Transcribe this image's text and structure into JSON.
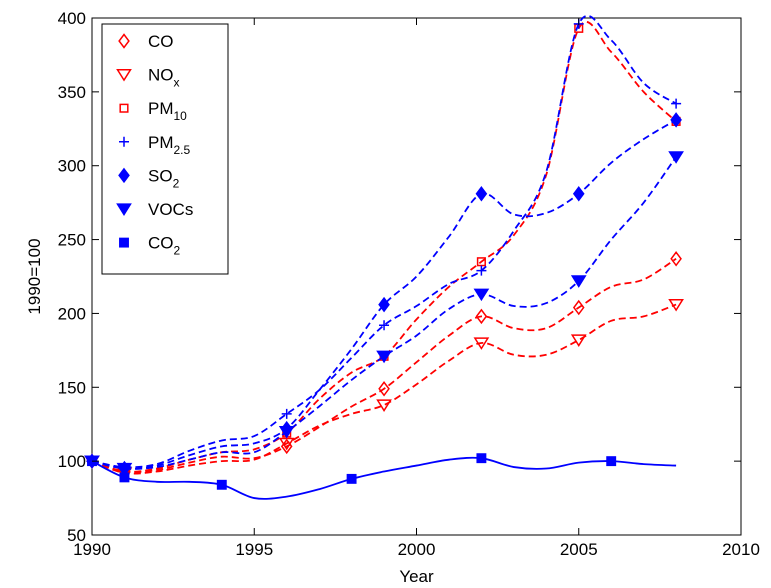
{
  "chart_data": {
    "type": "line",
    "title": "",
    "xlabel": "Year",
    "ylabel": "1990=100",
    "xlim": [
      1990,
      2010
    ],
    "ylim": [
      50,
      400
    ],
    "xticks": [
      1990,
      1995,
      2000,
      2005,
      2010
    ],
    "yticks": [
      50,
      100,
      150,
      200,
      250,
      300,
      350,
      400
    ],
    "grid": false,
    "legend_position": "top-left",
    "series": [
      {
        "name": "CO",
        "color": "#ff0000",
        "line_style": "dashed",
        "marker": "diamond-open",
        "x": [
          1990,
          1991,
          1992,
          1993,
          1994,
          1995,
          1996,
          1997,
          1998,
          1999,
          2000,
          2001,
          2002,
          2003,
          2004,
          2005,
          2006,
          2007,
          2008
        ],
        "y": [
          100,
          93,
          94,
          99,
          103,
          102,
          110,
          123,
          137,
          149,
          167,
          185,
          198,
          190,
          190,
          204,
          218,
          223,
          237
        ],
        "marker_x": [
          1990,
          1991,
          1996,
          1999,
          2002,
          2005,
          2008
        ],
        "marker_y": [
          100,
          93,
          110,
          149,
          198,
          204,
          237
        ]
      },
      {
        "name": "NOx",
        "color": "#ff0000",
        "line_style": "dashed",
        "marker": "triangle-down-open",
        "x": [
          1990,
          1991,
          1992,
          1993,
          1994,
          1995,
          1996,
          1997,
          1998,
          1999,
          2000,
          2001,
          2002,
          2003,
          2004,
          2005,
          2006,
          2007,
          2008
        ],
        "y": [
          100,
          92,
          93,
          97,
          100,
          101,
          112,
          124,
          132,
          138,
          152,
          168,
          180,
          172,
          172,
          182,
          195,
          198,
          206
        ],
        "marker_x": [
          1990,
          1991,
          1996,
          1999,
          2002,
          2005,
          2008
        ],
        "marker_y": [
          100,
          92,
          112,
          138,
          180,
          182,
          206
        ]
      },
      {
        "name": "PM10",
        "color": "#ff0000",
        "line_style": "dashed",
        "marker": "square-open",
        "x": [
          1990,
          1991,
          1992,
          1993,
          1994,
          1995,
          1996,
          1997,
          1998,
          1999,
          2000,
          2001,
          2002,
          2003,
          2004,
          2005,
          2006,
          2007,
          2008
        ],
        "y": [
          100,
          93,
          95,
          101,
          106,
          108,
          119,
          142,
          160,
          171,
          196,
          218,
          235,
          253,
          294,
          393,
          377,
          350,
          330
        ],
        "marker_x": [
          1990,
          1991,
          1996,
          1999,
          2002,
          2005,
          2008
        ],
        "marker_y": [
          100,
          93,
          119,
          171,
          235,
          393,
          330
        ]
      },
      {
        "name": "PM2.5",
        "color": "#0000ff",
        "line_style": "dashed",
        "marker": "plus",
        "x": [
          1990,
          1991,
          1992,
          1993,
          1994,
          1995,
          1996,
          1997,
          1998,
          1999,
          2000,
          2001,
          2002,
          2003,
          2004,
          2005,
          2006,
          2007,
          2008
        ],
        "y": [
          100,
          96,
          98,
          107,
          114,
          117,
          132,
          148,
          170,
          192,
          205,
          220,
          229,
          256,
          296,
          396,
          385,
          356,
          342
        ],
        "marker_x": [
          1990,
          1991,
          1996,
          1999,
          2002,
          2005,
          2008
        ],
        "marker_y": [
          100,
          96,
          132,
          192,
          229,
          396,
          342
        ]
      },
      {
        "name": "SO2",
        "color": "#0000ff",
        "line_style": "dashed",
        "marker": "diamond-filled",
        "x": [
          1990,
          1991,
          1992,
          1993,
          1994,
          1995,
          1996,
          1997,
          1998,
          1999,
          2000,
          2001,
          2002,
          2003,
          2004,
          2005,
          2006,
          2007,
          2008
        ],
        "y": [
          100,
          95,
          97,
          104,
          110,
          112,
          122,
          148,
          176,
          206,
          225,
          252,
          281,
          267,
          268,
          281,
          302,
          318,
          331
        ],
        "marker_x": [
          1990,
          1991,
          1996,
          1999,
          2002,
          2005,
          2008
        ],
        "marker_y": [
          100,
          95,
          122,
          206,
          281,
          281,
          331
        ]
      },
      {
        "name": "VOCs",
        "color": "#0000ff",
        "line_style": "dashed",
        "marker": "triangle-down-filled",
        "x": [
          1990,
          1991,
          1992,
          1993,
          1994,
          1995,
          1996,
          1997,
          1998,
          1999,
          2000,
          2001,
          2002,
          2003,
          2004,
          2005,
          2006,
          2007,
          2008
        ],
        "y": [
          100,
          95,
          96,
          101,
          106,
          106,
          120,
          137,
          155,
          171,
          185,
          203,
          213,
          205,
          207,
          222,
          250,
          275,
          306
        ],
        "marker_x": [
          1990,
          1991,
          1996,
          1999,
          2002,
          2005,
          2008
        ],
        "marker_y": [
          100,
          95,
          120,
          171,
          213,
          222,
          306
        ]
      },
      {
        "name": "CO2",
        "color": "#0000ff",
        "line_style": "solid",
        "marker": "square-filled",
        "x": [
          1990,
          1991,
          1992,
          1993,
          1994,
          1995,
          1996,
          1997,
          1998,
          1999,
          2000,
          2001,
          2002,
          2003,
          2004,
          2005,
          2006,
          2007,
          2008
        ],
        "y": [
          100,
          89,
          86,
          86,
          84,
          75,
          76,
          81,
          88,
          93,
          97,
          101,
          102,
          96,
          95,
          99,
          100,
          98,
          97
        ],
        "marker_x": [
          1990,
          1991,
          1994,
          1998,
          2002,
          2006
        ],
        "marker_y": [
          100,
          89,
          84,
          88,
          102,
          100
        ]
      }
    ],
    "legend": [
      {
        "main": "CO",
        "sub": ""
      },
      {
        "main": "NO",
        "sub": "x"
      },
      {
        "main": "PM",
        "sub": "10"
      },
      {
        "main": "PM",
        "sub": "2.5"
      },
      {
        "main": "SO",
        "sub": "2"
      },
      {
        "main": "VOCs",
        "sub": ""
      },
      {
        "main": "CO",
        "sub": "2"
      }
    ]
  }
}
